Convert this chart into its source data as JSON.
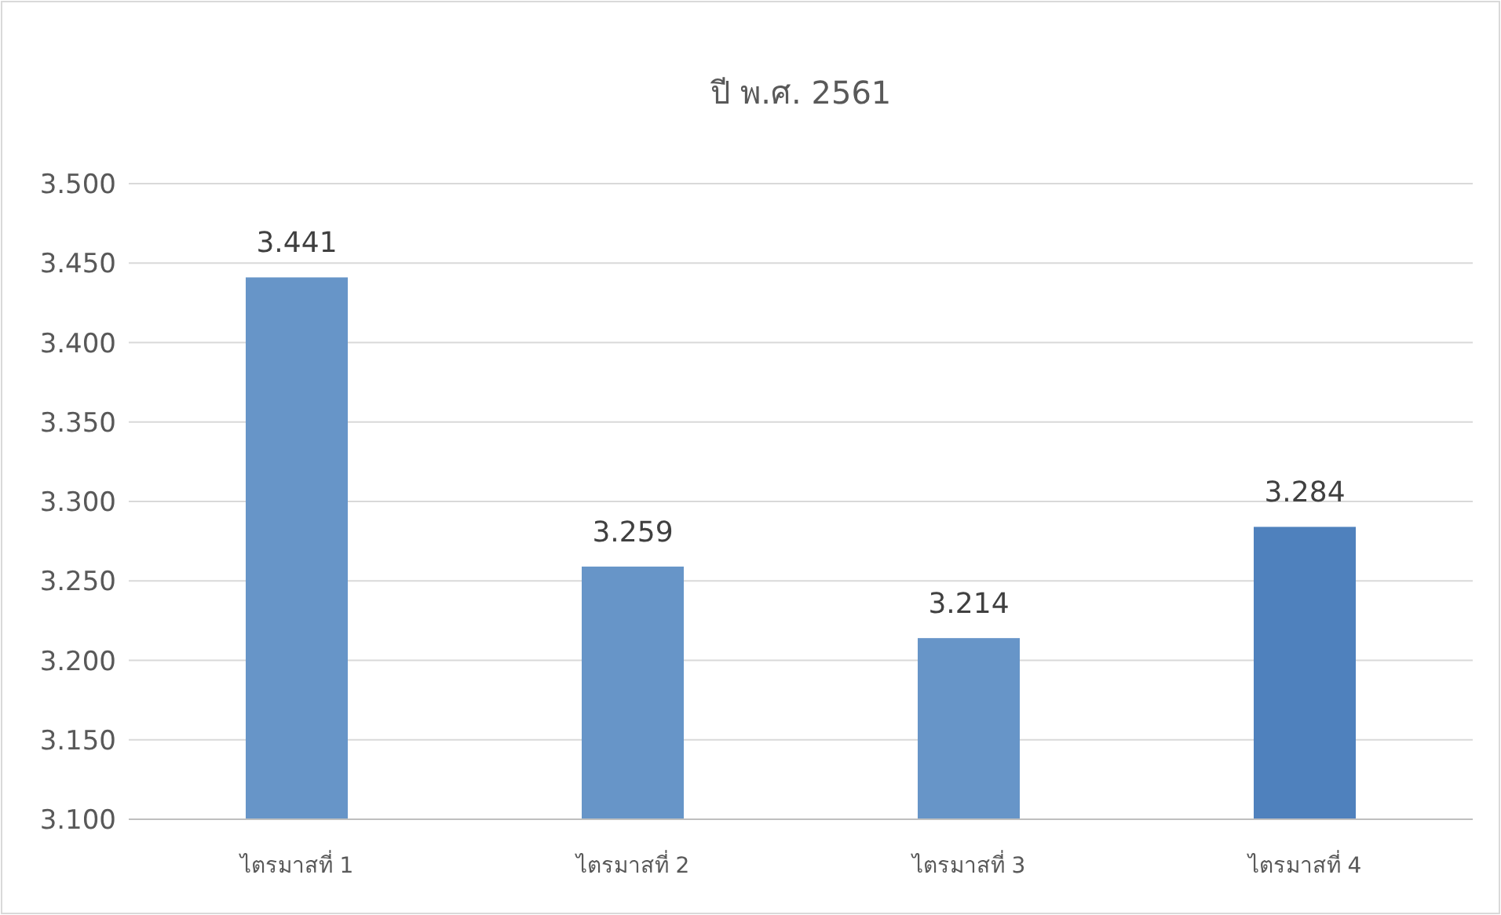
{
  "chart_data": {
    "type": "bar",
    "title": "ปี พ.ศ. 2561",
    "categories": [
      "ไตรมาสที่ 1",
      "ไตรมาสที่ 2",
      "ไตรมาสที่ 3",
      "ไตรมาสที่ 4"
    ],
    "values": [
      3.441,
      3.259,
      3.214,
      3.284
    ],
    "colors": [
      "#6795c8",
      "#6795c8",
      "#6795c8",
      "#4f81bd"
    ],
    "ylim": [
      3.1,
      3.5
    ],
    "yticks": [
      {
        "value": 3.1,
        "label": "3.100"
      },
      {
        "value": 3.15,
        "label": "3.150"
      },
      {
        "value": 3.2,
        "label": "3.200"
      },
      {
        "value": 3.25,
        "label": "3.250"
      },
      {
        "value": 3.3,
        "label": "3.300"
      },
      {
        "value": 3.35,
        "label": "3.350"
      },
      {
        "value": 3.4,
        "label": "3.400"
      },
      {
        "value": 3.45,
        "label": "3.450"
      },
      {
        "value": 3.5,
        "label": "3.500"
      }
    ],
    "grid": "y",
    "data_labels": true
  }
}
